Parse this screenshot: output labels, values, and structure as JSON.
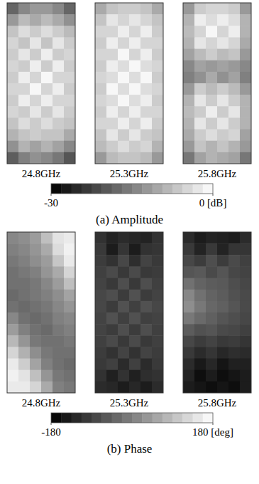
{
  "chart_data": [
    {
      "type": "heatmap",
      "title": "(a) Amplitude",
      "tick_labels": false,
      "panels": [
        {
          "label": "24.8GHz",
          "cells": [
            [
              -18,
              -14,
              -12,
              -12,
              -14,
              -18
            ],
            [
              -12,
              -8,
              -10,
              -8,
              -10,
              -13
            ],
            [
              -7,
              -4,
              -6,
              -4,
              -6,
              -8
            ],
            [
              -5,
              -7,
              -3,
              -7,
              -3,
              -6
            ],
            [
              -6,
              -3,
              -6,
              -2,
              -6,
              -5
            ],
            [
              -5,
              -6,
              -2,
              -6,
              -2,
              -6
            ],
            [
              -6,
              -2,
              -5,
              -1,
              -5,
              -5
            ],
            [
              -5,
              -5,
              -1,
              -5,
              -2,
              -6
            ],
            [
              -6,
              -2,
              -5,
              -2,
              -5,
              -5
            ],
            [
              -5,
              -6,
              -3,
              -6,
              -3,
              -6
            ],
            [
              -7,
              -4,
              -6,
              -4,
              -6,
              -7
            ],
            [
              -9,
              -7,
              -6,
              -7,
              -7,
              -10
            ],
            [
              -13,
              -9,
              -11,
              -9,
              -11,
              -14
            ],
            [
              -19,
              -15,
              -13,
              -14,
              -16,
              -20
            ]
          ]
        },
        {
          "label": "25.3GHz",
          "cells": [
            [
              -10,
              -7,
              -6,
              -6,
              -7,
              -10
            ],
            [
              -7,
              -3,
              -5,
              -3,
              -5,
              -7
            ],
            [
              -5,
              -5,
              -2,
              -5,
              -2,
              -6
            ],
            [
              -6,
              -2,
              -5,
              -2,
              -5,
              -5
            ],
            [
              -5,
              -5,
              -1,
              -5,
              -2,
              -6
            ],
            [
              -6,
              -2,
              -4,
              -1,
              -4,
              -5
            ],
            [
              -5,
              -4,
              -1,
              -4,
              -1,
              -6
            ],
            [
              -6,
              -1,
              -4,
              -1,
              -4,
              -5
            ],
            [
              -5,
              -4,
              -1,
              -4,
              -2,
              -6
            ],
            [
              -6,
              -2,
              -5,
              -2,
              -5,
              -5
            ],
            [
              -5,
              -5,
              -2,
              -5,
              -2,
              -6
            ],
            [
              -7,
              -3,
              -6,
              -3,
              -6,
              -7
            ],
            [
              -8,
              -6,
              -4,
              -6,
              -5,
              -9
            ],
            [
              -12,
              -8,
              -7,
              -7,
              -8,
              -12
            ]
          ]
        },
        {
          "label": "25.8GHz",
          "cells": [
            [
              -12,
              -6,
              -5,
              -5,
              -6,
              -12
            ],
            [
              -9,
              -2,
              -4,
              -2,
              -4,
              -9
            ],
            [
              -8,
              -5,
              -1,
              -5,
              -2,
              -9
            ],
            [
              -9,
              -3,
              -5,
              -3,
              -5,
              -10
            ],
            [
              -11,
              -8,
              -6,
              -8,
              -7,
              -12
            ],
            [
              -14,
              -11,
              -12,
              -11,
              -12,
              -14
            ],
            [
              -15,
              -13,
              -10,
              -13,
              -11,
              -15
            ],
            [
              -12,
              -6,
              -8,
              -6,
              -8,
              -12
            ],
            [
              -9,
              -3,
              -6,
              -3,
              -6,
              -9
            ],
            [
              -8,
              -6,
              -2,
              -6,
              -3,
              -9
            ],
            [
              -9,
              -3,
              -6,
              -3,
              -6,
              -9
            ],
            [
              -10,
              -6,
              -4,
              -6,
              -5,
              -11
            ],
            [
              -12,
              -7,
              -9,
              -7,
              -9,
              -12
            ],
            [
              -16,
              -11,
              -9,
              -10,
              -11,
              -16
            ]
          ]
        }
      ],
      "color_range": [
        -30,
        0
      ],
      "color_ticks": [
        -30,
        {
          "value": 0,
          "label": "0 [dB]"
        }
      ]
    },
    {
      "type": "heatmap",
      "title": "(b) Phase",
      "tick_labels": false,
      "panels": [
        {
          "label": "24.8GHz",
          "cells": [
            [
              10,
              20,
              40,
              90,
              140,
              150
            ],
            [
              0,
              10,
              30,
              60,
              130,
              160
            ],
            [
              -10,
              0,
              20,
              40,
              100,
              150
            ],
            [
              -20,
              -10,
              0,
              30,
              60,
              120
            ],
            [
              -20,
              -20,
              -10,
              10,
              40,
              90
            ],
            [
              -30,
              -20,
              -10,
              0,
              20,
              50
            ],
            [
              -20,
              -30,
              -20,
              -10,
              10,
              30
            ],
            [
              10,
              -20,
              -30,
              -20,
              0,
              10
            ],
            [
              40,
              0,
              -20,
              -30,
              -10,
              0
            ],
            [
              80,
              30,
              -10,
              -20,
              -20,
              -10
            ],
            [
              120,
              70,
              20,
              -10,
              -20,
              -20
            ],
            [
              150,
              110,
              50,
              0,
              -20,
              -30
            ],
            [
              160,
              140,
              90,
              30,
              -10,
              -20
            ],
            [
              150,
              150,
              120,
              60,
              0,
              -10
            ]
          ]
        },
        {
          "label": "25.3GHz",
          "cells": [
            [
              -110,
              -130,
              -120,
              -125,
              -130,
              -110
            ],
            [
              -100,
              -140,
              -105,
              -140,
              -110,
              -105
            ],
            [
              -95,
              -110,
              -80,
              -115,
              -85,
              -100
            ],
            [
              -90,
              -75,
              -100,
              -75,
              -100,
              -95
            ],
            [
              -85,
              -100,
              -70,
              -100,
              -70,
              -90
            ],
            [
              -80,
              -70,
              -95,
              -65,
              -95,
              -85
            ],
            [
              -80,
              -95,
              -65,
              -90,
              -65,
              -80
            ],
            [
              -85,
              -65,
              -90,
              -65,
              -90,
              -85
            ],
            [
              -85,
              -95,
              -70,
              -95,
              -70,
              -90
            ],
            [
              -90,
              -75,
              -100,
              -75,
              -100,
              -90
            ],
            [
              -95,
              -110,
              -85,
              -110,
              -85,
              -95
            ],
            [
              -100,
              -90,
              -120,
              -90,
              -120,
              -100
            ],
            [
              -110,
              -135,
              -110,
              -135,
              -115,
              -110
            ],
            [
              -120,
              -125,
              -140,
              -125,
              -140,
              -120
            ]
          ]
        },
        {
          "label": "25.8GHz",
          "cells": [
            [
              -120,
              -140,
              -130,
              -135,
              -140,
              -120
            ],
            [
              -100,
              -130,
              -100,
              -130,
              -105,
              -105
            ],
            [
              -80,
              -95,
              -70,
              -95,
              -75,
              -90
            ],
            [
              -60,
              -55,
              -75,
              -60,
              -80,
              -85
            ],
            [
              -20,
              -40,
              -50,
              -55,
              -70,
              -80
            ],
            [
              10,
              -20,
              -40,
              -50,
              -65,
              -75
            ],
            [
              20,
              -10,
              -35,
              -45,
              -60,
              -75
            ],
            [
              -10,
              -30,
              -45,
              -60,
              -70,
              -80
            ],
            [
              -50,
              -65,
              -60,
              -75,
              -80,
              -90
            ],
            [
              -80,
              -95,
              -85,
              -100,
              -95,
              -105
            ],
            [
              -100,
              -120,
              -105,
              -125,
              -115,
              -120
            ],
            [
              -120,
              -145,
              -125,
              -150,
              -135,
              -135
            ],
            [
              -130,
              -160,
              -140,
              -160,
              -150,
              -140
            ],
            [
              -140,
              -150,
              -160,
              -150,
              -160,
              -140
            ]
          ]
        }
      ],
      "color_range": [
        -180,
        180
      ],
      "color_ticks": [
        -180,
        {
          "value": 180,
          "label": "180 [deg]"
        }
      ]
    }
  ]
}
